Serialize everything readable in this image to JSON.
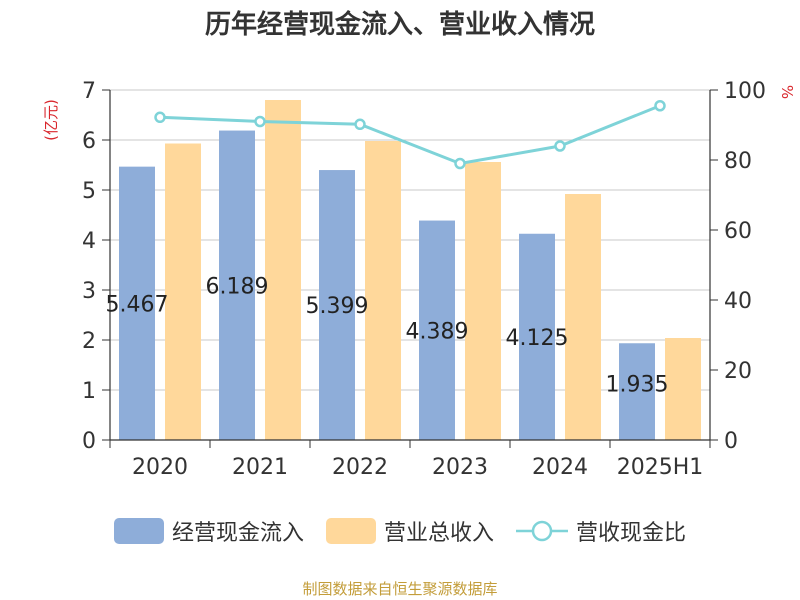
{
  "chart_data": {
    "type": "bar",
    "title": "历年经营现金流入、营业收入情况",
    "categories": [
      "2020",
      "2021",
      "2022",
      "2023",
      "2024",
      "2025H1"
    ],
    "y_left_unit": "(亿元)",
    "y_right_unit": "%",
    "y_left_range": [
      0,
      7
    ],
    "y_left_ticks": [
      "0",
      "1",
      "2",
      "3",
      "4",
      "5",
      "6",
      "7"
    ],
    "y_right_range": [
      0,
      100
    ],
    "y_right_ticks": [
      "0",
      "20",
      "40",
      "60",
      "80",
      "100"
    ],
    "grid": true,
    "legend_position": "bottom",
    "series": [
      {
        "name": "经营现金流入",
        "type": "bar",
        "axis": "left",
        "color": "#8eadd9",
        "values": [
          5.467,
          6.189,
          5.399,
          4.389,
          4.125,
          1.935
        ],
        "labels": [
          "5.467",
          "6.189",
          "5.399",
          "4.389",
          "4.125",
          "1.935"
        ]
      },
      {
        "name": "营业总收入",
        "type": "bar",
        "axis": "left",
        "color": "#ffd89b",
        "values": [
          5.93,
          6.8,
          5.98,
          5.56,
          4.92,
          2.04
        ]
      },
      {
        "name": "营收现金比",
        "type": "line",
        "axis": "right",
        "color": "#7ed3d8",
        "values": [
          92.2,
          91.0,
          90.2,
          79.0,
          84.0,
          95.5
        ]
      }
    ]
  },
  "source": "制图数据来自恒生聚源数据库"
}
